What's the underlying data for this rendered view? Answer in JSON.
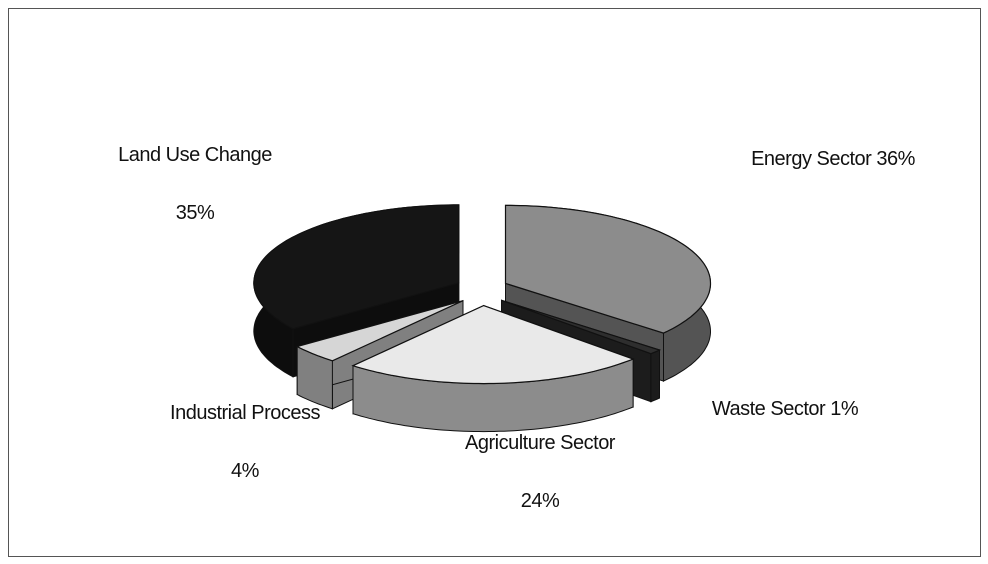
{
  "chart_data": {
    "type": "pie3d",
    "categories": [
      "Energy Sector",
      "Waste Sector",
      "Agriculture Sector",
      "Industrial Process",
      "Land Use Change"
    ],
    "values": [
      36,
      1,
      24,
      4,
      35
    ],
    "value_labels": [
      "36%",
      "1%",
      "24%",
      "4%",
      "35%"
    ],
    "colors": [
      "#8c8c8c",
      "#2e2e2e",
      "#e9e9e9",
      "#d6d6d6",
      "#151515"
    ]
  }
}
